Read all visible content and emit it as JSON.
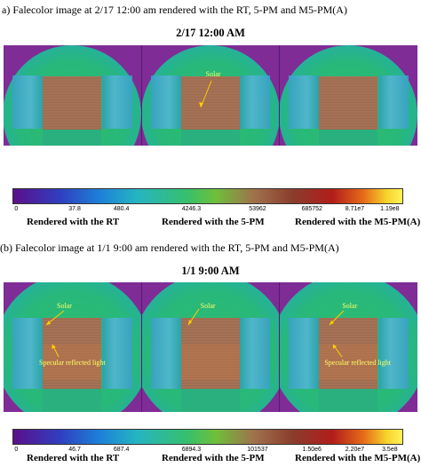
{
  "section_a": {
    "caption": "a) Falecolor image at 2/17 12:00 am rendered with the RT,  5-PM and M5-PM(A)",
    "subtitle": "2/17 12:00 AM",
    "colorbar_ticks": [
      "0",
      "37.8",
      "480.4",
      "4246.3",
      "53962",
      "685752",
      "8.71e7",
      "1.19e8"
    ],
    "panel_captions": [
      "Rendered with the RT",
      "Rendered with the 5-PM",
      "Rendered with the M5-PM(A)"
    ],
    "callout": "Solar"
  },
  "section_b": {
    "caption": "(b) Falecolor image at 1/1 9:00 am rendered with the RT,  5-PM and M5-PM(A)",
    "subtitle": "1/1 9:00 AM",
    "colorbar_ticks": [
      "0",
      "46.7",
      "687.4",
      "6894.3",
      "101537",
      "1.50e6",
      "2.20e7",
      "3.5e8"
    ],
    "panel_captions": [
      "Rendered with the RT",
      "Rendered with the 5-PM",
      "Rendered with the M5-PM(A)"
    ],
    "callout_solar": "Solar",
    "callout_specular": "Specular reflected light"
  }
}
